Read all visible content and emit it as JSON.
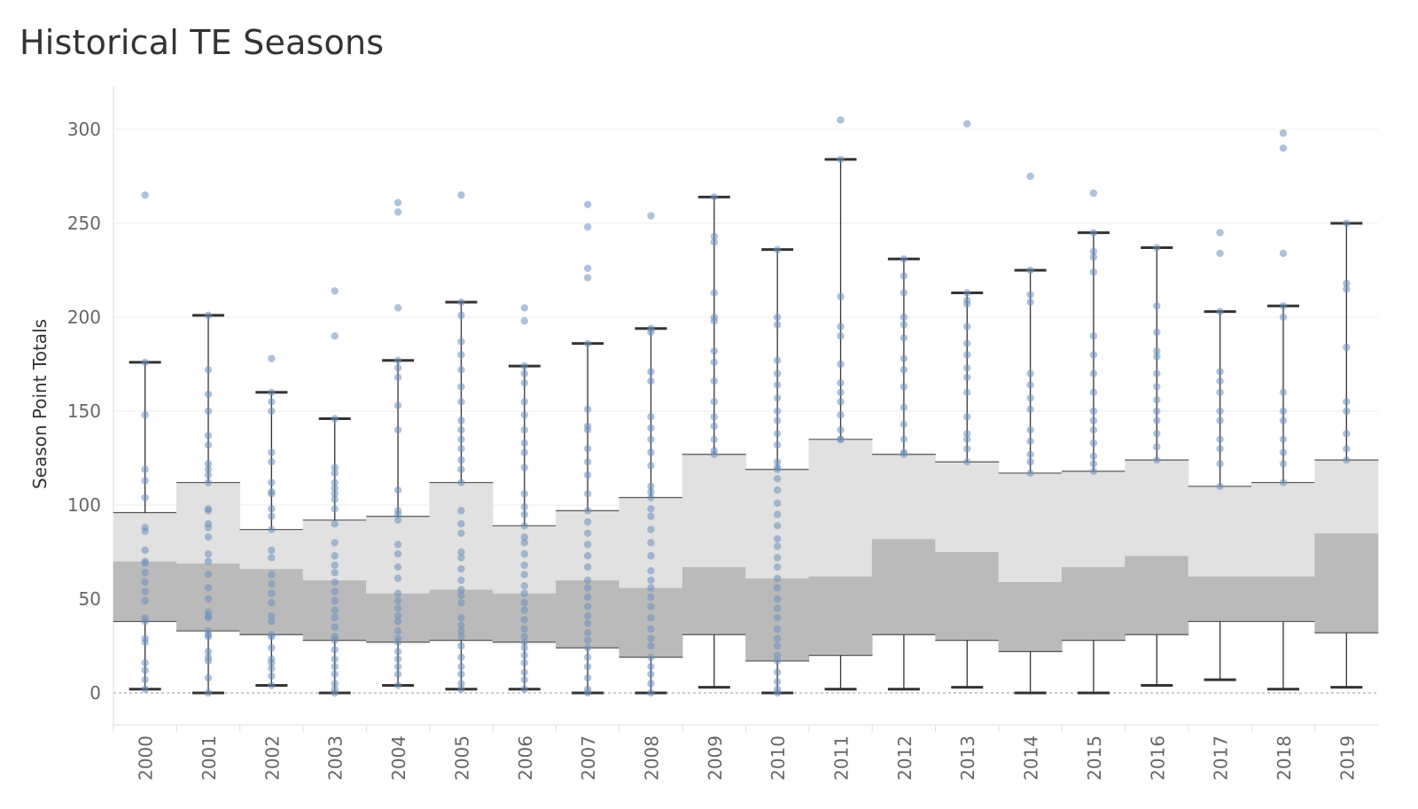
{
  "chart_data": {
    "type": "box",
    "title": "Historical TE Seasons",
    "xlabel": "",
    "ylabel": "Season Point Totals",
    "ylim": [
      -18,
      318
    ],
    "yticks": [
      0,
      50,
      100,
      150,
      200,
      250,
      300
    ],
    "gridlines": true,
    "categories": [
      "2000",
      "2001",
      "2002",
      "2003",
      "2004",
      "2005",
      "2006",
      "2007",
      "2008",
      "2009",
      "2010",
      "2011",
      "2012",
      "2013",
      "2014",
      "2015",
      "2016",
      "2017",
      "2018",
      "2019"
    ],
    "boxes": [
      {
        "min": 2,
        "q1": 38,
        "median": 70,
        "q3": 96,
        "max": 176
      },
      {
        "min": 0,
        "q1": 33,
        "median": 69,
        "q3": 112,
        "max": 201
      },
      {
        "min": 4,
        "q1": 31,
        "median": 66,
        "q3": 87,
        "max": 160
      },
      {
        "min": 0,
        "q1": 28,
        "median": 60,
        "q3": 92,
        "max": 146
      },
      {
        "min": 4,
        "q1": 27,
        "median": 53,
        "q3": 94,
        "max": 177
      },
      {
        "min": 2,
        "q1": 28,
        "median": 55,
        "q3": 112,
        "max": 208
      },
      {
        "min": 2,
        "q1": 27,
        "median": 53,
        "q3": 89,
        "max": 174
      },
      {
        "min": 0,
        "q1": 24,
        "median": 60,
        "q3": 97,
        "max": 186
      },
      {
        "min": 0,
        "q1": 19,
        "median": 56,
        "q3": 104,
        "max": 194
      },
      {
        "min": 3,
        "q1": 31,
        "median": 67,
        "q3": 127,
        "max": 264
      },
      {
        "min": 0,
        "q1": 17,
        "median": 61,
        "q3": 119,
        "max": 236
      },
      {
        "min": 2,
        "q1": 20,
        "median": 62,
        "q3": 135,
        "max": 284
      },
      {
        "min": 2,
        "q1": 31,
        "median": 82,
        "q3": 127,
        "max": 231
      },
      {
        "min": 3,
        "q1": 28,
        "median": 75,
        "q3": 123,
        "max": 213
      },
      {
        "min": 0,
        "q1": 22,
        "median": 59,
        "q3": 117,
        "max": 225
      },
      {
        "min": 0,
        "q1": 28,
        "median": 67,
        "q3": 118,
        "max": 245
      },
      {
        "min": 4,
        "q1": 31,
        "median": 73,
        "q3": 124,
        "max": 237
      },
      {
        "min": 7,
        "q1": 38,
        "median": 62,
        "q3": 110,
        "max": 203
      },
      {
        "min": 2,
        "q1": 38,
        "median": 62,
        "q3": 112,
        "max": 206
      },
      {
        "min": 3,
        "q1": 32,
        "median": 85,
        "q3": 124,
        "max": 250
      }
    ],
    "points": [
      [
        265,
        176,
        148,
        119,
        113,
        104,
        88,
        86,
        76,
        70,
        69,
        64,
        59,
        54,
        49,
        40,
        38,
        29,
        27,
        16,
        12,
        7,
        2
      ],
      [
        201,
        172,
        159,
        150,
        137,
        132,
        122,
        119,
        116,
        112,
        98,
        97,
        90,
        88,
        83,
        74,
        70,
        63,
        56,
        50,
        43,
        41,
        40,
        33,
        31,
        30,
        22,
        19,
        17,
        8,
        0
      ],
      [
        178,
        160,
        155,
        150,
        128,
        123,
        112,
        107,
        106,
        98,
        94,
        87,
        76,
        72,
        63,
        58,
        53,
        48,
        41,
        38,
        31,
        30,
        24,
        18,
        16,
        13,
        9,
        4
      ],
      [
        214,
        190,
        146,
        120,
        117,
        112,
        109,
        106,
        103,
        98,
        90,
        80,
        73,
        68,
        64,
        59,
        54,
        49,
        44,
        40,
        35,
        30,
        28,
        23,
        18,
        14,
        10,
        5,
        2,
        0
      ],
      [
        261,
        256,
        205,
        177,
        173,
        168,
        153,
        140,
        108,
        97,
        95,
        92,
        79,
        74,
        67,
        61,
        53,
        49,
        45,
        41,
        38,
        33,
        29,
        27,
        22,
        18,
        14,
        10,
        4
      ],
      [
        265,
        208,
        201,
        187,
        180,
        172,
        163,
        155,
        145,
        140,
        135,
        130,
        124,
        119,
        112,
        97,
        90,
        85,
        75,
        72,
        66,
        60,
        55,
        52,
        48,
        40,
        36,
        33,
        30,
        25,
        19,
        14,
        10,
        5,
        2
      ],
      [
        205,
        198,
        174,
        170,
        165,
        155,
        148,
        140,
        133,
        128,
        120,
        106,
        99,
        95,
        89,
        83,
        80,
        74,
        68,
        63,
        57,
        53,
        48,
        44,
        39,
        34,
        30,
        27,
        24,
        20,
        16,
        11,
        7,
        2
      ],
      [
        260,
        248,
        226,
        221,
        186,
        151,
        142,
        140,
        130,
        123,
        116,
        106,
        97,
        91,
        85,
        79,
        73,
        67,
        60,
        56,
        51,
        46,
        41,
        37,
        32,
        28,
        24,
        19,
        14,
        8,
        2,
        0
      ],
      [
        254,
        194,
        192,
        171,
        166,
        147,
        141,
        135,
        128,
        121,
        110,
        107,
        104,
        98,
        94,
        87,
        80,
        73,
        65,
        60,
        56,
        51,
        46,
        40,
        34,
        29,
        25,
        19,
        14,
        10,
        5,
        0
      ],
      [
        264,
        243,
        240,
        213,
        200,
        198,
        182,
        176,
        166,
        155,
        147,
        142,
        135,
        129,
        127
      ],
      [
        236,
        200,
        196,
        177,
        170,
        164,
        157,
        150,
        145,
        138,
        132,
        123,
        120,
        119,
        114,
        108,
        101,
        95,
        89,
        82,
        78,
        72,
        67,
        61,
        56,
        50,
        45,
        40,
        34,
        29,
        25,
        20,
        17,
        11,
        6,
        2,
        0
      ],
      [
        305,
        284,
        211,
        195,
        190,
        175,
        165,
        160,
        155,
        148,
        140,
        135,
        135
      ],
      [
        231,
        222,
        213,
        200,
        196,
        189,
        178,
        172,
        163,
        152,
        143,
        135,
        128,
        127
      ],
      [
        303,
        213,
        209,
        207,
        195,
        186,
        180,
        173,
        168,
        160,
        147,
        138,
        135,
        130,
        123
      ],
      [
        275,
        225,
        212,
        208,
        170,
        164,
        157,
        151,
        140,
        134,
        127,
        123,
        117
      ],
      [
        266,
        245,
        235,
        232,
        224,
        190,
        180,
        170,
        160,
        150,
        145,
        140,
        133,
        126,
        122,
        118
      ],
      [
        237,
        206,
        192,
        182,
        179,
        170,
        163,
        156,
        150,
        145,
        138,
        131,
        124
      ],
      [
        245,
        234,
        203,
        171,
        166,
        160,
        150,
        145,
        135,
        130,
        122,
        110
      ],
      [
        298,
        290,
        234,
        206,
        200,
        160,
        150,
        145,
        135,
        128,
        122,
        112
      ],
      [
        250,
        218,
        215,
        184,
        155,
        150,
        138,
        130,
        124
      ]
    ]
  }
}
